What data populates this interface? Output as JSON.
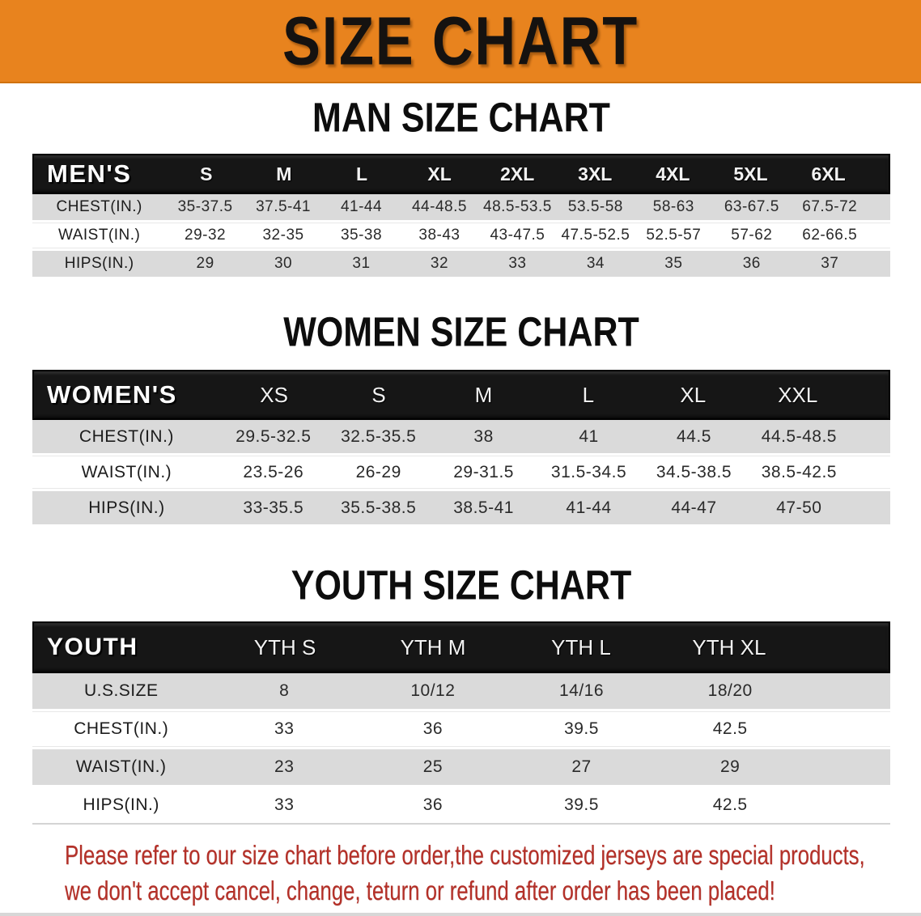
{
  "colors": {
    "banner_orange": "#E8831E",
    "header_black": "#161616",
    "stripe_gray": "#DADADA",
    "disclaimer_red": "#B43028"
  },
  "banner": {
    "title": "SIZE CHART"
  },
  "sections": {
    "men": {
      "heading": "MAN SIZE CHART",
      "table": {
        "label": "MEN'S",
        "columns": [
          "S",
          "M",
          "L",
          "XL",
          "2XL",
          "3XL",
          "4XL",
          "5XL",
          "6XL"
        ],
        "rows": [
          {
            "label": "CHEST(IN.)",
            "values": [
              "35-37.5",
              "37.5-41",
              "41-44",
              "44-48.5",
              "48.5-53.5",
              "53.5-58",
              "58-63",
              "63-67.5",
              "67.5-72"
            ]
          },
          {
            "label": "WAIST(IN.)",
            "values": [
              "29-32",
              "32-35",
              "35-38",
              "38-43",
              "43-47.5",
              "47.5-52.5",
              "52.5-57",
              "57-62",
              "62-66.5"
            ]
          },
          {
            "label": "HIPS(IN.)",
            "values": [
              "29",
              "30",
              "31",
              "32",
              "33",
              "34",
              "35",
              "36",
              "37"
            ]
          }
        ]
      }
    },
    "women": {
      "heading": "WOMEN SIZE CHART",
      "table": {
        "label": "WOMEN'S",
        "columns": [
          "XS",
          "S",
          "M",
          "L",
          "XL",
          "XXL"
        ],
        "rows": [
          {
            "label": "CHEST(IN.)",
            "values": [
              "29.5-32.5",
              "32.5-35.5",
              "38",
              "41",
              "44.5",
              "44.5-48.5"
            ]
          },
          {
            "label": "WAIST(IN.)",
            "values": [
              "23.5-26",
              "26-29",
              "29-31.5",
              "31.5-34.5",
              "34.5-38.5",
              "38.5-42.5"
            ]
          },
          {
            "label": "HIPS(IN.)",
            "values": [
              "33-35.5",
              "35.5-38.5",
              "38.5-41",
              "41-44",
              "44-47",
              "47-50"
            ]
          }
        ]
      }
    },
    "youth": {
      "heading": "YOUTH SIZE CHART",
      "table": {
        "label": "YOUTH",
        "columns": [
          "YTH S",
          "YTH M",
          "YTH L",
          "YTH XL"
        ],
        "rows": [
          {
            "label": "U.S.SIZE",
            "values": [
              "8",
              "10/12",
              "14/16",
              "18/20"
            ]
          },
          {
            "label": "CHEST(IN.)",
            "values": [
              "33",
              "36",
              "39.5",
              "42.5"
            ]
          },
          {
            "label": "WAIST(IN.)",
            "values": [
              "23",
              "25",
              "27",
              "29"
            ]
          },
          {
            "label": "HIPS(IN.)",
            "values": [
              "33",
              "36",
              "39.5",
              "42.5"
            ]
          }
        ]
      }
    }
  },
  "disclaimer": {
    "lines": [
      "Please refer to our size chart before order,the customized jerseys are special products,",
      "we don't accept cancel, change, teturn or refund after order has been placed!"
    ]
  }
}
